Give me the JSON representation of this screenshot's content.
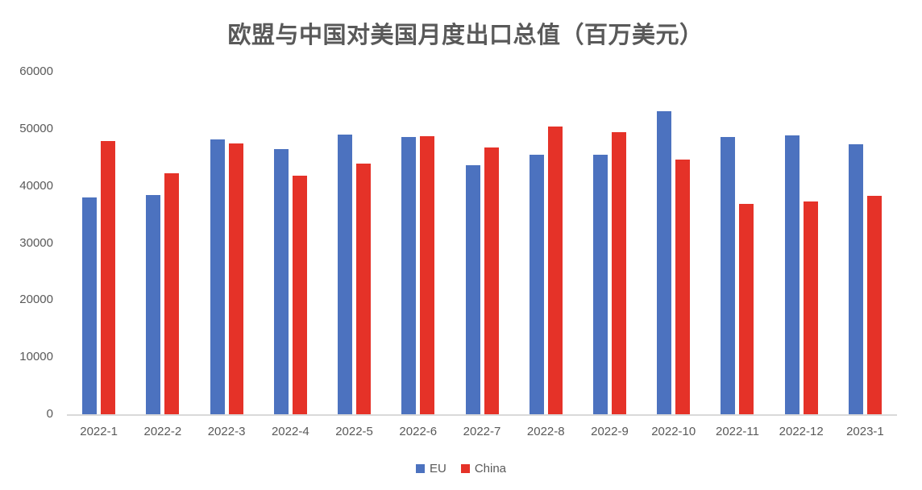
{
  "chart_data": {
    "type": "bar",
    "title": "欧盟与中国对美国月度出口总值（百万美元）",
    "categories": [
      "2022-1",
      "2022-2",
      "2022-3",
      "2022-4",
      "2022-5",
      "2022-6",
      "2022-7",
      "2022-8",
      "2022-9",
      "2022-10",
      "2022-11",
      "2022-12",
      "2023-1"
    ],
    "series": [
      {
        "name": "EU",
        "color": "#4C72BF",
        "values": [
          38000,
          38400,
          48100,
          46500,
          49000,
          48500,
          43600,
          45500,
          45400,
          53100,
          48600,
          48900,
          47300
        ]
      },
      {
        "name": "China",
        "color": "#E53228",
        "values": [
          47900,
          42200,
          47400,
          41800,
          43900,
          48700,
          46700,
          50400,
          49400,
          44600,
          36900,
          37300,
          38300
        ]
      }
    ],
    "xlabel": "",
    "ylabel": "",
    "ylim": [
      0,
      60000
    ],
    "yticks": [
      0,
      10000,
      20000,
      30000,
      40000,
      50000,
      60000
    ],
    "grid": false,
    "legend_position": "bottom",
    "text_color": "#595959",
    "axis_line_color": "#D9D9D9"
  }
}
